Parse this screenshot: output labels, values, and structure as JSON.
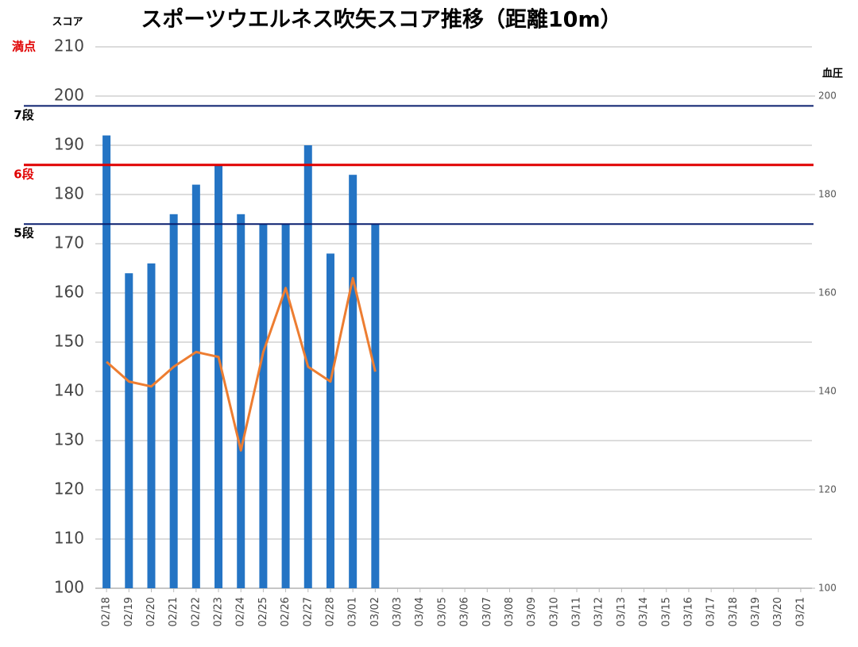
{
  "chart_data": {
    "type": "bar_line",
    "title": "スポーツウエルネス吹矢スコア推移（距離10m）",
    "y_label": "スコア",
    "y2_label": "血圧",
    "categories": [
      "02/18",
      "02/19",
      "02/20",
      "02/21",
      "02/22",
      "02/23",
      "02/24",
      "02/25",
      "02/26",
      "02/27",
      "02/28",
      "03/01",
      "03/02",
      "03/03",
      "03/04",
      "03/05",
      "03/06",
      "03/07",
      "03/08",
      "03/09",
      "03/10",
      "03/11",
      "03/12",
      "03/13",
      "03/14",
      "03/15",
      "03/16",
      "03/17",
      "03/18",
      "03/19",
      "03/20",
      "03/21"
    ],
    "series": [
      {
        "type": "bar",
        "axis": "y",
        "color": "#2474c4",
        "values": [
          192,
          164,
          166,
          176,
          182,
          186,
          176,
          174,
          174,
          190,
          168,
          184,
          174,
          null,
          null,
          null,
          null,
          null,
          null,
          null,
          null,
          null,
          null,
          null,
          null,
          null,
          null,
          null,
          null,
          null,
          null,
          null
        ]
      },
      {
        "type": "line",
        "axis": "y2",
        "color": "#ed7d31",
        "values": [
          146,
          142,
          141,
          145,
          148,
          147,
          128,
          148,
          161,
          145,
          142,
          163,
          144,
          null,
          null,
          null,
          null,
          null,
          null,
          null,
          null,
          null,
          null,
          null,
          null,
          null,
          null,
          null,
          null,
          null,
          null,
          null
        ]
      }
    ],
    "ylim": [
      100,
      210
    ],
    "yticks": [
      100,
      110,
      120,
      130,
      140,
      150,
      160,
      170,
      180,
      190,
      200,
      210
    ],
    "y2lim": [
      100,
      210
    ],
    "y2ticks": [
      100,
      120,
      140,
      160,
      180,
      200
    ],
    "grid": true,
    "reference_lines": [
      {
        "label": "満点",
        "value": 210,
        "color": "#e00000",
        "line": false
      },
      {
        "label": "7段",
        "value": 198,
        "color": "#0a1f6e",
        "line": true,
        "label_color": "#000000"
      },
      {
        "label": "6段",
        "value": 186,
        "color": "#e00000",
        "line": true,
        "label_color": "#e00000"
      },
      {
        "label": "5段",
        "value": 174,
        "color": "#0a1f6e",
        "line": true,
        "label_color": "#000000"
      }
    ]
  }
}
